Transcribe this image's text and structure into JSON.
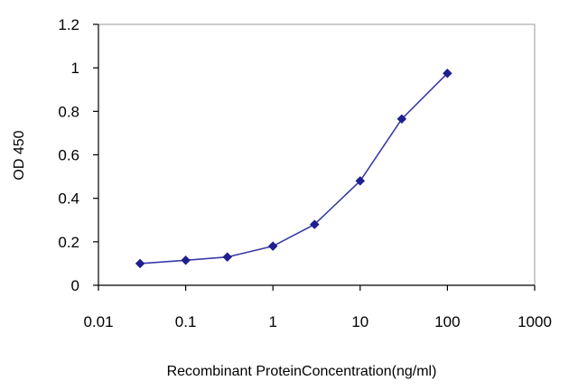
{
  "chart_data": {
    "type": "line",
    "title": "",
    "xlabel": "Recombinant ProteinConcentration(ng/ml)",
    "ylabel": "OD 450",
    "x_scale": "log",
    "xlim": [
      0.01,
      1000
    ],
    "ylim": [
      0,
      1.2
    ],
    "x_ticks": [
      {
        "value": 0.01,
        "label": "0.01"
      },
      {
        "value": 0.1,
        "label": "0.1"
      },
      {
        "value": 1,
        "label": "1"
      },
      {
        "value": 10,
        "label": "10"
      },
      {
        "value": 100,
        "label": "100"
      },
      {
        "value": 1000,
        "label": "1000"
      }
    ],
    "y_ticks": [
      {
        "value": 0,
        "label": "0"
      },
      {
        "value": 0.2,
        "label": "0.2"
      },
      {
        "value": 0.4,
        "label": "0.4"
      },
      {
        "value": 0.6,
        "label": "0.6"
      },
      {
        "value": 0.8,
        "label": "0.8"
      },
      {
        "value": 1,
        "label": "1"
      },
      {
        "value": 1.2,
        "label": "1.2"
      }
    ],
    "grid": false,
    "legend": "none",
    "series": [
      {
        "color": "#1f1f8f",
        "marker": "diamond",
        "points": [
          {
            "x": 0.03,
            "y": 0.1
          },
          {
            "x": 0.1,
            "y": 0.115
          },
          {
            "x": 0.3,
            "y": 0.13
          },
          {
            "x": 1,
            "y": 0.18
          },
          {
            "x": 3,
            "y": 0.28
          },
          {
            "x": 10,
            "y": 0.48
          },
          {
            "x": 30,
            "y": 0.765
          },
          {
            "x": 100,
            "y": 0.975
          }
        ]
      }
    ]
  }
}
